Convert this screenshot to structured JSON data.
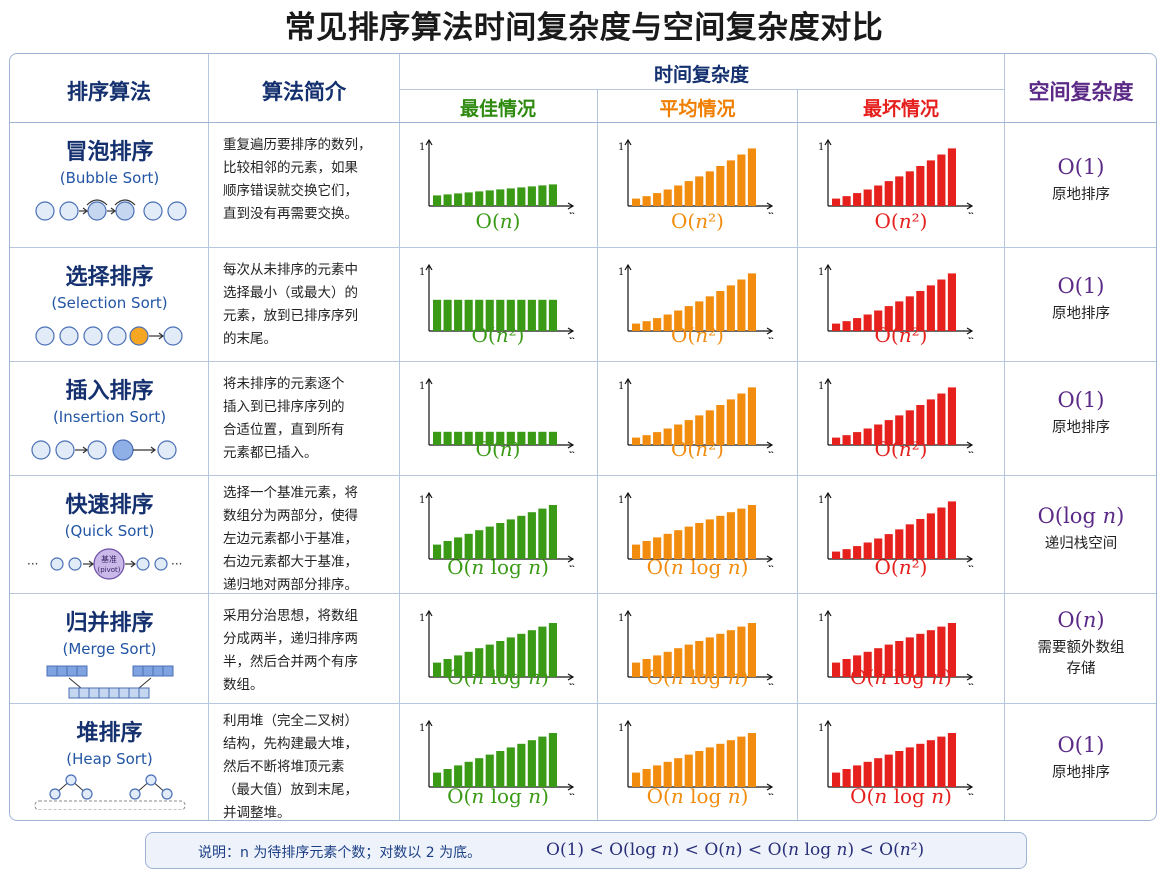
{
  "title": "常见排序算法时间复杂度与空间复杂度对比",
  "headers": {
    "algorithm": "排序算法",
    "intro": "算法简介",
    "time": "时间复杂度",
    "best": "最佳情况",
    "average": "平均情况",
    "worst": "最坏情况",
    "space": "空间复杂度"
  },
  "chart_axis": {
    "y_tick": "1",
    "x_label": "n"
  },
  "colors": {
    "best": "#3a9a16",
    "average": "#f28c0f",
    "worst": "#e5201d",
    "header_blue": "#14306f",
    "space_purple": "#5b2a86"
  },
  "rows": [
    {
      "name": "冒泡排序",
      "en": "(Bubble Sort)",
      "desc": [
        "重复遍历要排序的数列，",
        "比较相邻的元素，如果",
        "顺序错误就交换它们，",
        "直到没有再需要交换。"
      ],
      "best": "O(n)",
      "avg": "O(n²)",
      "worst": "O(n²)",
      "best_shape": "linear",
      "avg_shape": "quadratic",
      "worst_shape": "quadratic",
      "space": "O(1)",
      "space_note": [
        "原地排序"
      ],
      "icon": "bubble-swap-icon"
    },
    {
      "name": "选择排序",
      "en": "(Selection Sort)",
      "desc": [
        "每次从未排序的元素中",
        "选择最小（或最大）的",
        "元素，放到已排序序列",
        "的末尾。"
      ],
      "best": "O(n²)",
      "avg": "O(n²)",
      "worst": "O(n²)",
      "best_shape": "flat-high",
      "avg_shape": "quadratic",
      "worst_shape": "quadratic",
      "space": "O(1)",
      "space_note": [
        "原地排序"
      ],
      "icon": "selection-icon"
    },
    {
      "name": "插入排序",
      "en": "(Insertion Sort)",
      "desc": [
        "将未排序的元素逐个",
        "插入到已排序序列的",
        "合适位置，直到所有",
        "元素都已插入。"
      ],
      "best": "O(n)",
      "avg": "O(n²)",
      "worst": "O(n²)",
      "best_shape": "flat-low",
      "avg_shape": "quadratic",
      "worst_shape": "quadratic",
      "space": "O(1)",
      "space_note": [
        "原地排序"
      ],
      "icon": "insertion-icon"
    },
    {
      "name": "快速排序",
      "en": "(Quick Sort)",
      "desc": [
        "选择一个基准元素，将",
        "数组分为两部分，使得",
        "左边元素都小于基准，",
        "右边元素都大于基准，",
        "递归地对两部分排序。"
      ],
      "best": "O(n log n)",
      "avg": "O(n log n)",
      "worst": "O(n²)",
      "best_shape": "nlogn",
      "avg_shape": "nlogn",
      "worst_shape": "quadratic",
      "space": "O(log n)",
      "space_note": [
        "递归栈空间"
      ],
      "icon": "pivot-icon",
      "pivot_label": "基准",
      "pivot_en": "(pivot)"
    },
    {
      "name": "归并排序",
      "en": "(Merge Sort)",
      "desc": [
        "采用分治思想，将数组",
        "分成两半，递归排序两",
        "半，然后合并两个有序",
        "数组。"
      ],
      "best": "O(n log n)",
      "avg": "O(n log n)",
      "worst": "O(n log n)",
      "best_shape": "nlogn",
      "avg_shape": "nlogn",
      "worst_shape": "nlogn",
      "space": "O(n)",
      "space_note": [
        "需要额外数组",
        "存储"
      ],
      "icon": "merge-icon"
    },
    {
      "name": "堆排序",
      "en": "(Heap Sort)",
      "desc": [
        "利用堆（完全二叉树）",
        "结构，先构建最大堆，",
        "然后不断将堆顶元素",
        "（最大值）放到末尾，",
        "并调整堆。"
      ],
      "best": "O(n log n)",
      "avg": "O(n log n)",
      "worst": "O(n log n)",
      "best_shape": "nlogn",
      "avg_shape": "nlogn",
      "worst_shape": "nlogn",
      "space": "O(1)",
      "space_note": [
        "原地排序"
      ],
      "icon": "heap-tree-icon"
    }
  ],
  "note": {
    "text": "说明：n 为待排序元素个数；对数以 2 为底。",
    "order": "O(1)  <  O(log n)  <  O(n)  <  O(n log n)  <  O(n²)"
  }
}
